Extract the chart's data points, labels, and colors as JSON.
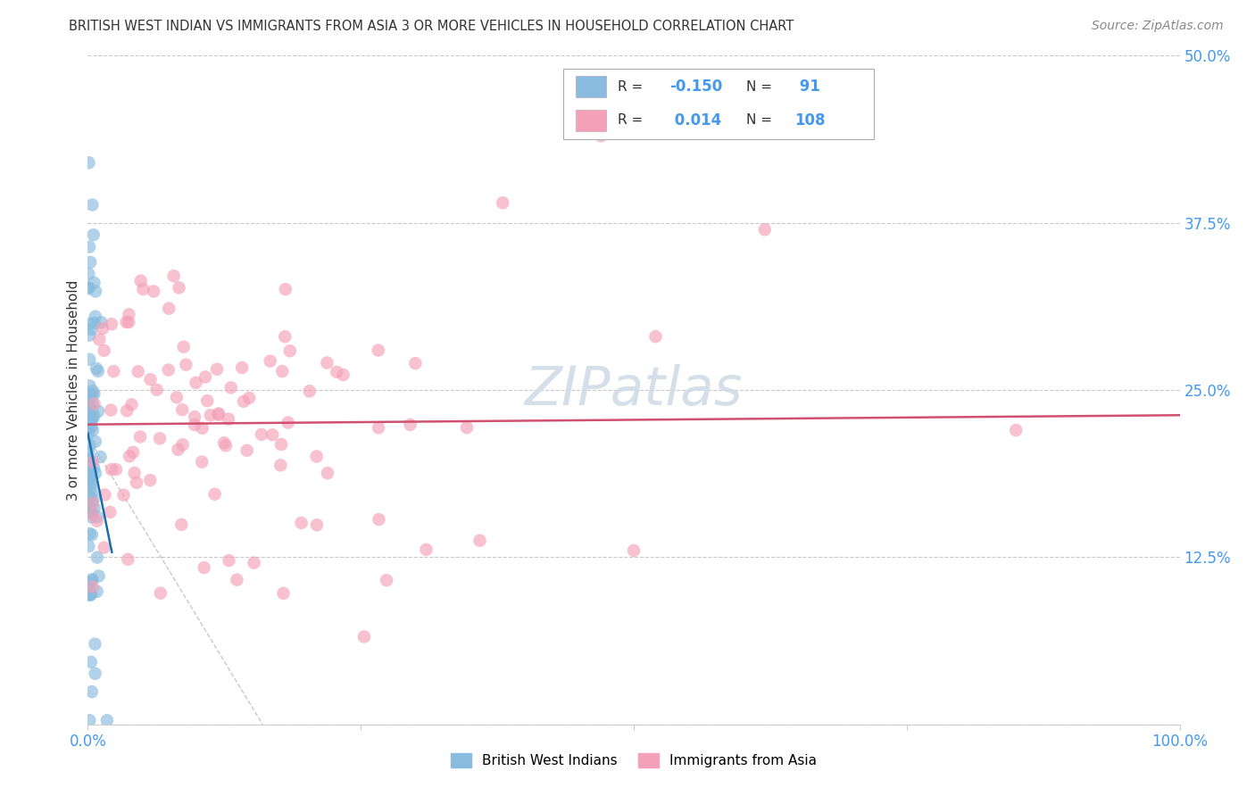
{
  "title": "BRITISH WEST INDIAN VS IMMIGRANTS FROM ASIA 3 OR MORE VEHICLES IN HOUSEHOLD CORRELATION CHART",
  "source": "Source: ZipAtlas.com",
  "ylabel": "3 or more Vehicles in Household",
  "legend1_label": "British West Indians",
  "legend2_label": "Immigrants from Asia",
  "r1": -0.15,
  "n1": 91,
  "r2": 0.014,
  "n2": 108,
  "color1": "#88bbdd",
  "color2": "#f4a0b8",
  "trendline1_color": "#1a6faf",
  "trendline2_color": "#d05070",
  "dashed_color": "#bbbbbb",
  "background_color": "#ffffff",
  "grid_color": "#bbbbbb",
  "watermark_color": "#d0dce8",
  "tick_label_color": "#4499ee",
  "title_color": "#333333",
  "source_color": "#888888",
  "xlim": [
    0.0,
    1.0
  ],
  "ylim": [
    0.0,
    0.5
  ],
  "xticks": [
    0.0,
    0.25,
    0.5,
    0.75,
    1.0
  ],
  "xticklabels": [
    "0.0%",
    "",
    "",
    "",
    "100.0%"
  ],
  "ytick_vals": [
    0.0,
    0.125,
    0.25,
    0.375,
    0.5
  ],
  "ytick_labels": [
    "",
    "12.5%",
    "25.0%",
    "37.5%",
    "50.0%"
  ],
  "legend_r1_text": "R = ",
  "legend_r1_val": "-0.150",
  "legend_n1_text": "N = ",
  "legend_n1_val": " 91",
  "legend_r2_text": "R =  ",
  "legend_r2_val": "0.014",
  "legend_n2_text": "N = ",
  "legend_n2_val": "108"
}
